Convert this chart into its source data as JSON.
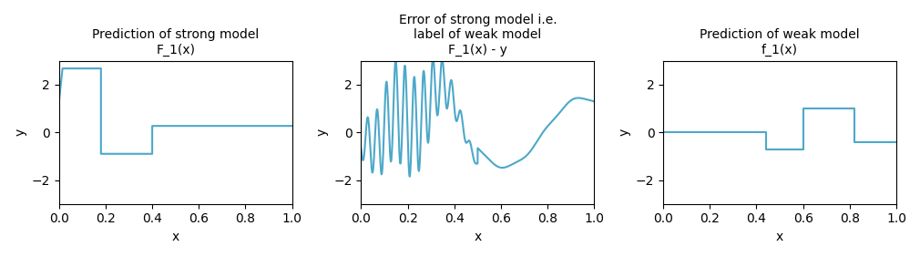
{
  "title1": "Prediction of strong model\nF_1(x)",
  "title2": "Error of strong model i.e.\nlabel of weak model\nF_1(x) - y",
  "title3": "Prediction of weak model\nf_1(x)",
  "xlabel": "x",
  "ylabel": "y",
  "ylim": [
    -3,
    3
  ],
  "xlim": [
    0.0,
    1.0
  ],
  "line_color": "#4da8c9",
  "figsize": [
    10.1,
    2.82
  ],
  "dpi": 100,
  "plot1_segments": [
    [
      0.0,
      1.3
    ],
    [
      0.015,
      2.68
    ],
    [
      0.18,
      2.68
    ],
    [
      0.18,
      -0.9
    ],
    [
      0.4,
      -0.9
    ],
    [
      0.4,
      0.27
    ],
    [
      1.0,
      0.27
    ]
  ],
  "plot3_segments": [
    [
      0.0,
      0.0
    ],
    [
      0.44,
      0.0
    ],
    [
      0.44,
      -0.7
    ],
    [
      0.6,
      -0.7
    ],
    [
      0.6,
      1.0
    ],
    [
      0.82,
      1.0
    ],
    [
      0.82,
      -0.4
    ],
    [
      1.0,
      -0.4
    ]
  ],
  "n_points": 3000
}
